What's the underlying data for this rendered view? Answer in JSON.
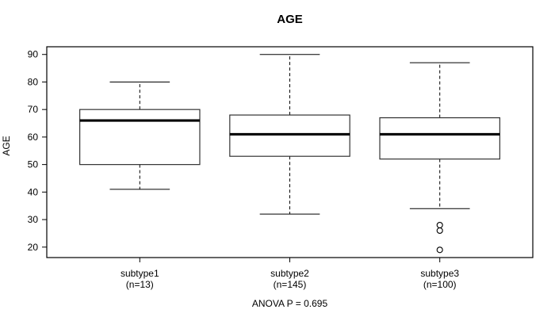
{
  "chart_data": {
    "type": "boxplot",
    "title": "AGE",
    "ylabel": "AGE",
    "xlabel": "",
    "annotation": "ANOVA P = 0.695",
    "ylim": [
      16.2,
      92.8
    ],
    "yticks": [
      20,
      30,
      40,
      50,
      60,
      70,
      80,
      90
    ],
    "grid": false,
    "groups": [
      {
        "label": "subtype1",
        "n_label": "(n=13)",
        "n": 13,
        "whisker_low": 41,
        "q1": 50,
        "median": 66,
        "q3": 70,
        "whisker_high": 80,
        "outliers": []
      },
      {
        "label": "subtype2",
        "n_label": "(n=145)",
        "n": 145,
        "whisker_low": 32,
        "q1": 53,
        "median": 61,
        "q3": 68,
        "whisker_high": 90,
        "outliers": []
      },
      {
        "label": "subtype3",
        "n_label": "(n=100)",
        "n": 100,
        "whisker_low": 34,
        "q1": 52,
        "median": 61,
        "q3": 67,
        "whisker_high": 87,
        "outliers": [
          28,
          26,
          19
        ]
      }
    ],
    "colors": {
      "line": "#000000",
      "box_border": "#333333",
      "median": "#000000",
      "background": "#ffffff",
      "text": "#000000"
    }
  }
}
